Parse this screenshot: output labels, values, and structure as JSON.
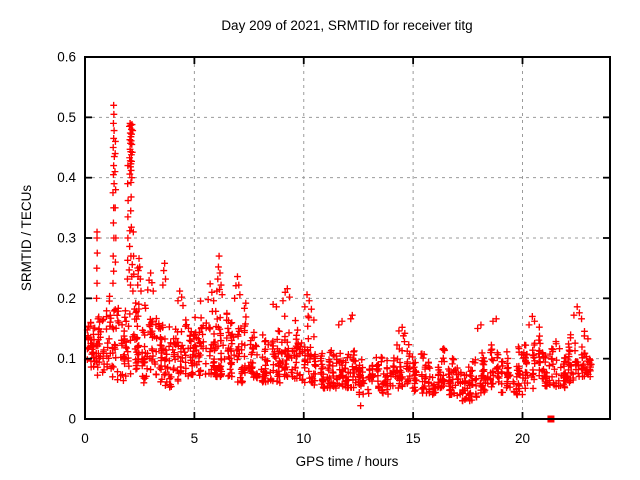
{
  "chart_data": {
    "type": "scatter",
    "title": "Day 209 of 2021, SRMTID for receiver titg",
    "xlabel": "GPS time / hours",
    "ylabel": "SRMTID / TECUs",
    "xlim": [
      0,
      24
    ],
    "ylim": [
      0,
      0.6
    ],
    "xticks": [
      0,
      5,
      10,
      15,
      20
    ],
    "xtick_labels": [
      "0",
      "5",
      "10",
      "15",
      "20"
    ],
    "yticks": [
      0,
      0.1,
      0.2,
      0.3,
      0.4,
      0.5,
      0.6
    ],
    "ytick_labels": [
      "0",
      "0.1",
      "0.2",
      "0.3",
      "0.4",
      "0.5",
      "0.6"
    ],
    "grid": true,
    "grid_color": "#9b9b9b",
    "frame_color": "#000000",
    "background_color": "#ffffff",
    "marker": "plus",
    "marker_color": "#ff0000",
    "legend": "none",
    "seed": 20921,
    "bin_width": 0.5,
    "band_bins": [
      [
        0.0,
        0.08,
        0.18,
        34
      ],
      [
        0.5,
        0.07,
        0.19,
        34
      ],
      [
        1.0,
        0.07,
        0.22,
        34
      ],
      [
        1.5,
        0.06,
        0.2,
        34
      ],
      [
        2.0,
        0.07,
        0.26,
        36
      ],
      [
        2.5,
        0.06,
        0.2,
        32
      ],
      [
        3.0,
        0.06,
        0.21,
        32
      ],
      [
        3.5,
        0.05,
        0.19,
        32
      ],
      [
        4.0,
        0.06,
        0.18,
        32
      ],
      [
        4.5,
        0.07,
        0.21,
        34
      ],
      [
        5.0,
        0.07,
        0.2,
        32
      ],
      [
        5.5,
        0.07,
        0.19,
        32
      ],
      [
        6.0,
        0.07,
        0.23,
        34
      ],
      [
        6.5,
        0.07,
        0.21,
        34
      ],
      [
        7.0,
        0.06,
        0.19,
        32
      ],
      [
        7.5,
        0.06,
        0.16,
        30
      ],
      [
        8.0,
        0.06,
        0.17,
        30
      ],
      [
        8.5,
        0.06,
        0.18,
        32
      ],
      [
        9.0,
        0.07,
        0.2,
        34
      ],
      [
        9.5,
        0.06,
        0.17,
        30
      ],
      [
        10.0,
        0.06,
        0.18,
        30
      ],
      [
        10.5,
        0.05,
        0.14,
        30
      ],
      [
        11.0,
        0.05,
        0.12,
        30
      ],
      [
        11.5,
        0.05,
        0.13,
        30
      ],
      [
        12.0,
        0.05,
        0.14,
        30
      ],
      [
        12.5,
        0.04,
        0.12,
        28
      ],
      [
        13.0,
        0.05,
        0.12,
        28
      ],
      [
        13.5,
        0.04,
        0.11,
        28
      ],
      [
        14.0,
        0.05,
        0.13,
        28
      ],
      [
        14.5,
        0.05,
        0.14,
        28
      ],
      [
        15.0,
        0.04,
        0.12,
        28
      ],
      [
        15.5,
        0.04,
        0.11,
        28
      ],
      [
        16.0,
        0.05,
        0.13,
        28
      ],
      [
        16.5,
        0.04,
        0.12,
        28
      ],
      [
        17.0,
        0.03,
        0.1,
        28
      ],
      [
        17.5,
        0.03,
        0.11,
        28
      ],
      [
        18.0,
        0.04,
        0.13,
        30
      ],
      [
        18.5,
        0.05,
        0.15,
        30
      ],
      [
        19.0,
        0.04,
        0.12,
        30
      ],
      [
        19.5,
        0.04,
        0.13,
        30
      ],
      [
        20.0,
        0.05,
        0.15,
        30
      ],
      [
        20.5,
        0.06,
        0.16,
        30
      ],
      [
        21.0,
        0.05,
        0.13,
        30
      ],
      [
        21.5,
        0.05,
        0.14,
        30
      ],
      [
        22.0,
        0.06,
        0.16,
        32
      ],
      [
        22.5,
        0.07,
        0.17,
        32
      ],
      [
        23.0,
        0.07,
        0.13,
        12,
        23.15
      ]
    ],
    "spike_points": [
      [
        0.53,
        0.2
      ],
      [
        0.55,
        0.225
      ],
      [
        0.54,
        0.25
      ],
      [
        0.56,
        0.275
      ],
      [
        0.55,
        0.3
      ],
      [
        0.55,
        0.31
      ],
      [
        1.28,
        0.225
      ],
      [
        1.31,
        0.245
      ],
      [
        1.29,
        0.27
      ],
      [
        1.32,
        0.3
      ],
      [
        1.3,
        0.325
      ],
      [
        1.31,
        0.35
      ],
      [
        1.28,
        0.375
      ],
      [
        1.33,
        0.39
      ],
      [
        1.3,
        0.405
      ],
      [
        1.31,
        0.42
      ],
      [
        1.34,
        0.435
      ],
      [
        1.29,
        0.45
      ],
      [
        1.31,
        0.465
      ],
      [
        1.33,
        0.478
      ],
      [
        1.3,
        0.49
      ],
      [
        1.32,
        0.505
      ],
      [
        1.31,
        0.52
      ],
      [
        1.38,
        0.44
      ],
      [
        1.39,
        0.46
      ],
      [
        1.37,
        0.41
      ],
      [
        1.4,
        0.38
      ],
      [
        1.38,
        0.35
      ],
      [
        1.41,
        0.3
      ],
      [
        1.39,
        0.26
      ],
      [
        2.03,
        0.485
      ],
      [
        2.06,
        0.49
      ],
      [
        2.09,
        0.487
      ],
      [
        2.12,
        0.48
      ],
      [
        2.15,
        0.488
      ],
      [
        2.18,
        0.478
      ],
      [
        2.07,
        0.474
      ],
      [
        2.1,
        0.468
      ],
      [
        2.13,
        0.472
      ],
      [
        2.05,
        0.463
      ],
      [
        2.08,
        0.457
      ],
      [
        2.11,
        0.461
      ],
      [
        2.14,
        0.455
      ],
      [
        2.06,
        0.447
      ],
      [
        2.09,
        0.443
      ],
      [
        2.12,
        0.438
      ],
      [
        2.16,
        0.442
      ],
      [
        2.04,
        0.433
      ],
      [
        2.07,
        0.428
      ],
      [
        2.1,
        0.423
      ],
      [
        2.13,
        0.427
      ],
      [
        2.08,
        0.418
      ],
      [
        2.11,
        0.412
      ],
      [
        2.05,
        0.406
      ],
      [
        2.14,
        0.4
      ],
      [
        1.96,
        0.42
      ],
      [
        1.95,
        0.39
      ],
      [
        1.97,
        0.362
      ],
      [
        1.96,
        0.335
      ],
      [
        2.1,
        0.392
      ],
      [
        2.11,
        0.368
      ],
      [
        2.09,
        0.345
      ],
      [
        1.96,
        0.3
      ],
      [
        2.05,
        0.312
      ],
      [
        2.12,
        0.318
      ],
      [
        2.04,
        0.286
      ],
      [
        2.1,
        0.27
      ],
      [
        1.95,
        0.263
      ],
      [
        1.94,
        0.232
      ],
      [
        2.02,
        0.247
      ],
      [
        2.08,
        0.222
      ],
      [
        2.14,
        0.236
      ],
      [
        2.19,
        0.212
      ],
      [
        2.16,
        0.256
      ],
      [
        2.21,
        0.31
      ],
      [
        2.22,
        0.27
      ],
      [
        2.23,
        0.24
      ],
      [
        2.41,
        0.222
      ],
      [
        2.44,
        0.246
      ],
      [
        2.47,
        0.266
      ],
      [
        2.5,
        0.252
      ],
      [
        2.53,
        0.232
      ],
      [
        2.56,
        0.212
      ],
      [
        2.87,
        0.214
      ],
      [
        2.93,
        0.23
      ],
      [
        3.0,
        0.242
      ],
      [
        3.06,
        0.226
      ],
      [
        3.12,
        0.212
      ],
      [
        3.56,
        0.222
      ],
      [
        3.6,
        0.246
      ],
      [
        3.64,
        0.258
      ],
      [
        3.68,
        0.232
      ],
      [
        4.25,
        0.196
      ],
      [
        4.33,
        0.212
      ],
      [
        4.42,
        0.202
      ],
      [
        4.48,
        0.188
      ],
      [
        5.63,
        0.198
      ],
      [
        5.72,
        0.224
      ],
      [
        5.8,
        0.21
      ],
      [
        5.88,
        0.196
      ],
      [
        6.03,
        0.212
      ],
      [
        6.07,
        0.232
      ],
      [
        6.1,
        0.252
      ],
      [
        6.13,
        0.27
      ],
      [
        6.17,
        0.242
      ],
      [
        6.22,
        0.222
      ],
      [
        6.27,
        0.206
      ],
      [
        6.84,
        0.2
      ],
      [
        6.9,
        0.221
      ],
      [
        6.97,
        0.236
      ],
      [
        7.03,
        0.222
      ],
      [
        7.08,
        0.206
      ],
      [
        7.35,
        0.192
      ],
      [
        8.6,
        0.19
      ],
      [
        8.75,
        0.186
      ],
      [
        9.05,
        0.196
      ],
      [
        9.15,
        0.21
      ],
      [
        9.25,
        0.216
      ],
      [
        9.35,
        0.202
      ],
      [
        10.05,
        0.186
      ],
      [
        10.15,
        0.206
      ],
      [
        10.25,
        0.196
      ],
      [
        10.35,
        0.182
      ],
      [
        11.6,
        0.156
      ],
      [
        11.75,
        0.162
      ],
      [
        12.15,
        0.166
      ],
      [
        12.22,
        0.172
      ],
      [
        12.6,
        0.022
      ],
      [
        14.35,
        0.146
      ],
      [
        14.5,
        0.152
      ],
      [
        14.62,
        0.142
      ],
      [
        17.95,
        0.15
      ],
      [
        18.1,
        0.156
      ],
      [
        18.65,
        0.162
      ],
      [
        18.8,
        0.166
      ],
      [
        20.3,
        0.156
      ],
      [
        20.45,
        0.17
      ],
      [
        20.55,
        0.162
      ],
      [
        22.35,
        0.172
      ],
      [
        22.5,
        0.186
      ],
      [
        22.6,
        0.176
      ],
      [
        22.7,
        0.166
      ]
    ],
    "special_points": [
      {
        "x": 21.3,
        "y": 0.0,
        "marker": "filled-square",
        "color": "#ff0000"
      }
    ]
  }
}
